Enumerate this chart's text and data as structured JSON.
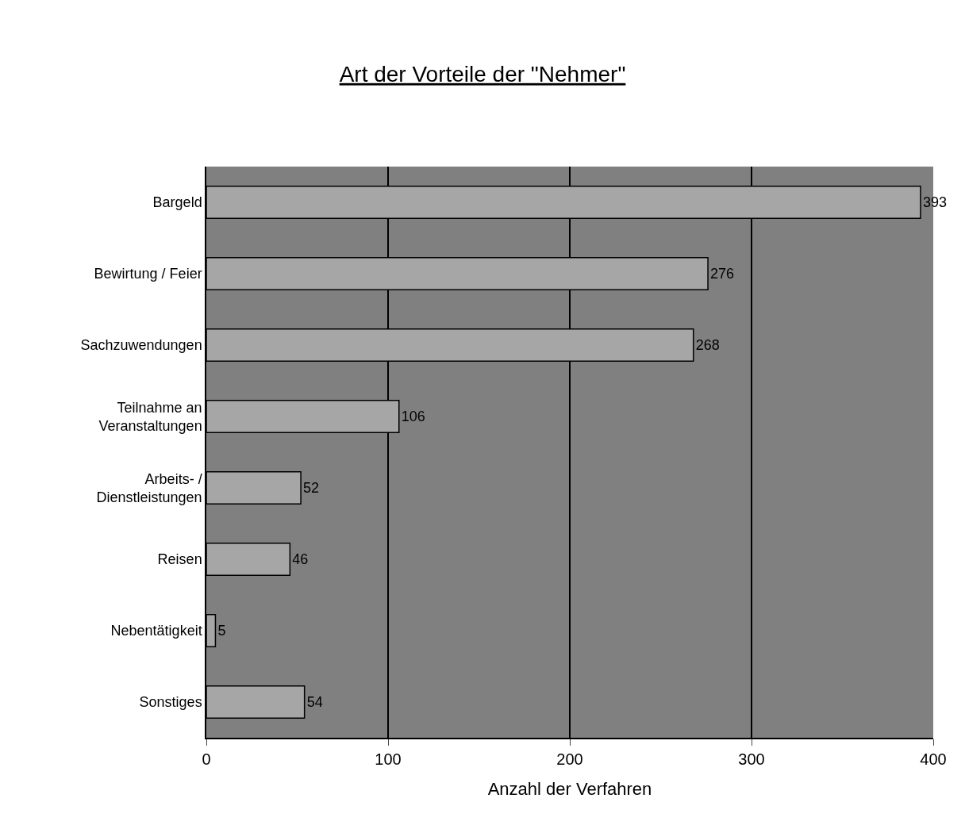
{
  "chart_data": {
    "type": "bar",
    "orientation": "horizontal",
    "title": "Art der Vorteile der \"Nehmer\"",
    "xlabel": "Anzahl der Verfahren",
    "categories": [
      "Bargeld",
      "Bewirtung / Feier",
      "Sachzuwendungen",
      "Teilnahme an\nVeranstaltungen",
      "Arbeits- /\nDienstleistungen",
      "Reisen",
      "Nebentätigkeit",
      "Sonstiges"
    ],
    "values": [
      393,
      276,
      268,
      106,
      52,
      46,
      5,
      54
    ],
    "color": "#a6a6a6",
    "xlim": [
      0,
      400
    ],
    "xticks": [
      0,
      100,
      200,
      300,
      400
    ],
    "grid": "x",
    "data_labels": true
  }
}
